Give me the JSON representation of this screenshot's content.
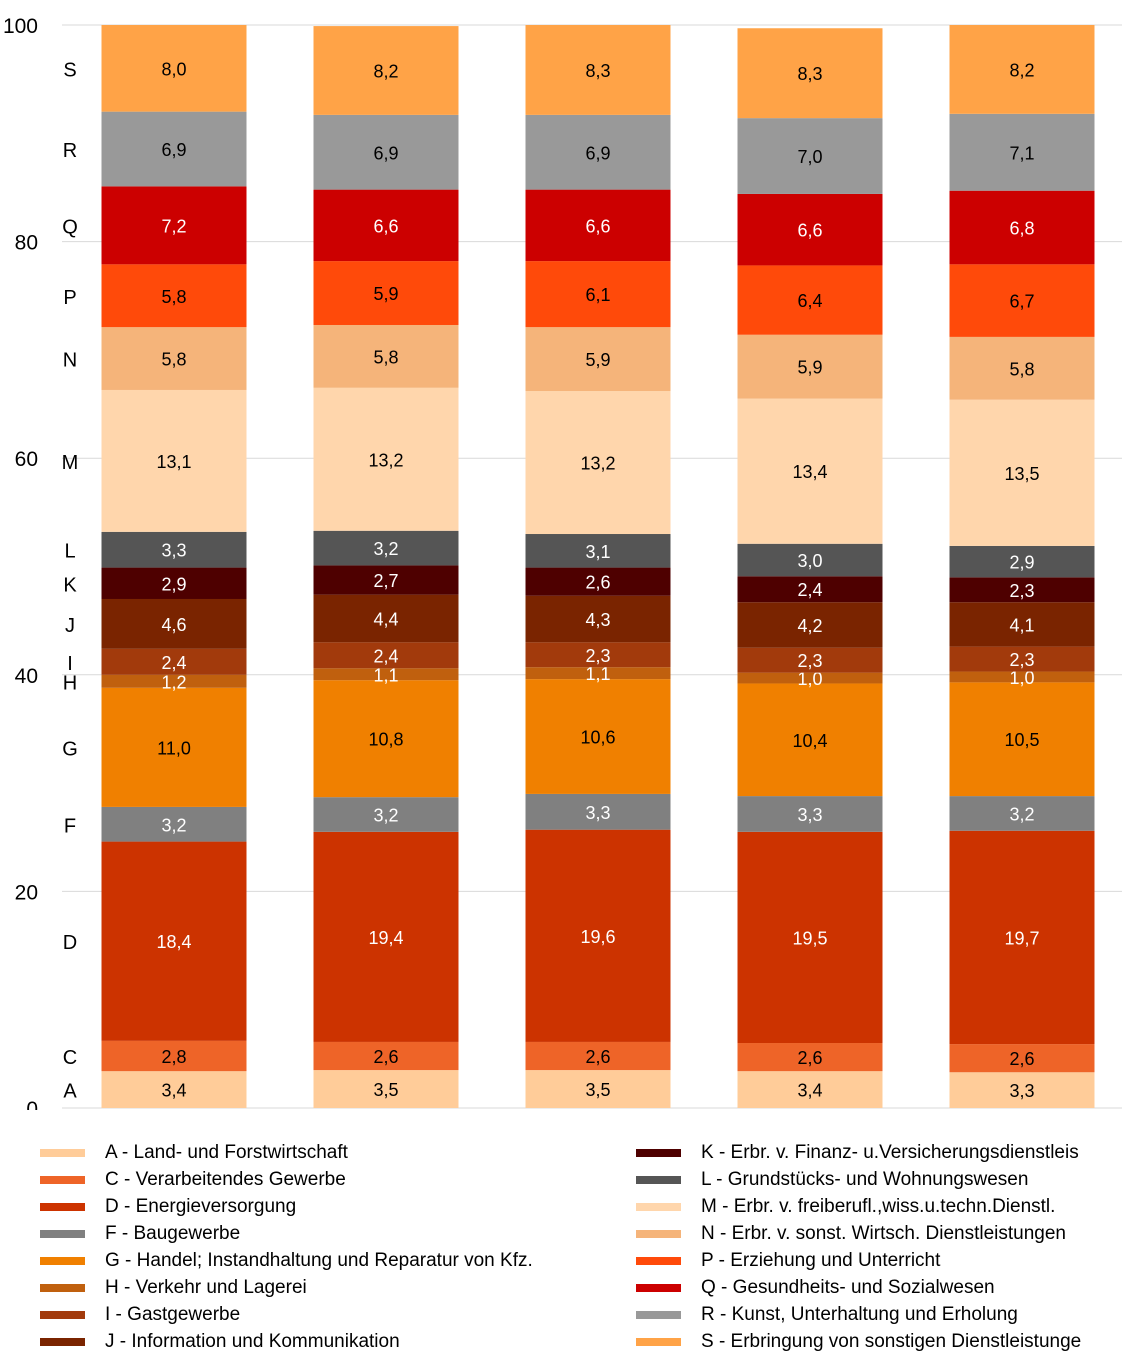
{
  "chart_data": {
    "type": "bar",
    "stacked": true,
    "ylim": [
      0,
      100
    ],
    "yticks": [
      "0",
      "20",
      "40",
      "60",
      "80",
      "100"
    ],
    "grid": true,
    "categories": [
      "",
      "",
      "",
      "",
      ""
    ],
    "row_labels": [
      "A",
      "C",
      "D",
      "F",
      "G",
      "H",
      "I",
      "J",
      "K",
      "L",
      "M",
      "N",
      "P",
      "Q",
      "R",
      "S"
    ],
    "series": [
      {
        "name": "A - Land- und Forstwirtschaft",
        "color": "#FFCC99",
        "label_color": "#000000",
        "values": [
          3.4,
          3.5,
          3.5,
          3.4,
          3.3
        ],
        "labels": [
          "3,4",
          "3,5",
          "3,5",
          "3,4",
          "3,3"
        ]
      },
      {
        "name": "C - Verarbeitendes Gewerbe",
        "color": "#EE6428",
        "label_color": "#000000",
        "values": [
          2.8,
          2.6,
          2.6,
          2.6,
          2.6
        ],
        "labels": [
          "2,8",
          "2,6",
          "2,6",
          "2,6",
          "2,6"
        ]
      },
      {
        "name": "D - Energieversorgung",
        "color": "#CC3300",
        "label_color": "#ffffff",
        "values": [
          18.4,
          19.4,
          19.6,
          19.5,
          19.7
        ],
        "labels": [
          "18,4",
          "19,4",
          "19,6",
          "19,5",
          "19,7"
        ]
      },
      {
        "name": "F - Baugewerbe",
        "color": "#808080",
        "label_color": "#ffffff",
        "values": [
          3.2,
          3.2,
          3.3,
          3.3,
          3.2
        ],
        "labels": [
          "3,2",
          "3,2",
          "3,3",
          "3,3",
          "3,2"
        ]
      },
      {
        "name": "G - Handel; Instandhaltung und Reparatur von Kfz.",
        "color": "#F08000",
        "label_color": "#000000",
        "values": [
          11.0,
          10.8,
          10.6,
          10.4,
          10.5
        ],
        "labels": [
          "11,0",
          "10,8",
          "10,6",
          "10,4",
          "10,5"
        ]
      },
      {
        "name": "H - Verkehr und Lagerei",
        "color": "#C0600E",
        "label_color": "#ffffff",
        "values": [
          1.2,
          1.1,
          1.1,
          1.0,
          1.0
        ],
        "labels": [
          "1,2",
          "1,1",
          "1,1",
          "1,0",
          "1,0"
        ]
      },
      {
        "name": "I - Gastgewerbe",
        "color": "#A23A0C",
        "label_color": "#ffffff",
        "values": [
          2.4,
          2.4,
          2.3,
          2.3,
          2.3
        ],
        "labels": [
          "2,4",
          "2,4",
          "2,3",
          "2,3",
          "2,3"
        ]
      },
      {
        "name": "J - Information und Kommunikation",
        "color": "#7A2400",
        "label_color": "#ffffff",
        "values": [
          4.6,
          4.4,
          4.3,
          4.2,
          4.1
        ],
        "labels": [
          "4,6",
          "4,4",
          "4,3",
          "4,2",
          "4,1"
        ]
      },
      {
        "name": "K - Erbr. v. Finanz- u.Versicherungsdienstleis",
        "color": "#4E0000",
        "label_color": "#ffffff",
        "values": [
          2.9,
          2.7,
          2.6,
          2.4,
          2.3
        ],
        "labels": [
          "2,9",
          "2,7",
          "2,6",
          "2,4",
          "2,3"
        ]
      },
      {
        "name": "L - Grundstücks- und Wohnungswesen",
        "color": "#555555",
        "label_color": "#ffffff",
        "values": [
          3.3,
          3.2,
          3.1,
          3.0,
          2.9
        ],
        "labels": [
          "3,3",
          "3,2",
          "3,1",
          "3,0",
          "2,9"
        ]
      },
      {
        "name": "M - Erbr. v. freiberufl.,wiss.u.techn.Dienstl.",
        "color": "#FFD6AC",
        "label_color": "#000000",
        "values": [
          13.1,
          13.2,
          13.2,
          13.4,
          13.5
        ],
        "labels": [
          "13,1",
          "13,2",
          "13,2",
          "13,4",
          "13,5"
        ]
      },
      {
        "name": "N - Erbr. v. sonst. Wirtsch. Dienstleistungen",
        "color": "#F5B47A",
        "label_color": "#000000",
        "values": [
          5.8,
          5.8,
          5.9,
          5.9,
          5.8
        ],
        "labels": [
          "5,8",
          "5,8",
          "5,9",
          "5,9",
          "5,8"
        ]
      },
      {
        "name": "P - Erziehung und Unterricht",
        "color": "#FF4A0A",
        "label_color": "#000000",
        "values": [
          5.8,
          5.9,
          6.1,
          6.4,
          6.7
        ],
        "labels": [
          "5,8",
          "5,9",
          "6,1",
          "6,4",
          "6,7"
        ]
      },
      {
        "name": "Q - Gesundheits- und Sozialwesen",
        "color": "#CC0000",
        "label_color": "#ffffff",
        "values": [
          7.2,
          6.6,
          6.6,
          6.6,
          6.8
        ],
        "labels": [
          "7,2",
          "6,6",
          "6,6",
          "6,6",
          "6,8"
        ]
      },
      {
        "name": "R - Kunst, Unterhaltung und Erholung",
        "color": "#999999",
        "label_color": "#000000",
        "values": [
          6.9,
          6.9,
          6.9,
          7.0,
          7.1
        ],
        "labels": [
          "6,9",
          "6,9",
          "6,9",
          "7,0",
          "7,1"
        ]
      },
      {
        "name": "S - Erbringung von sonstigen Dienstleistunge",
        "color": "#FFA347",
        "label_color": "#000000",
        "values": [
          8.0,
          8.2,
          8.3,
          8.3,
          8.2
        ],
        "labels": [
          "8,0",
          "8,2",
          "8,3",
          "8,3",
          "8,2"
        ]
      }
    ]
  }
}
